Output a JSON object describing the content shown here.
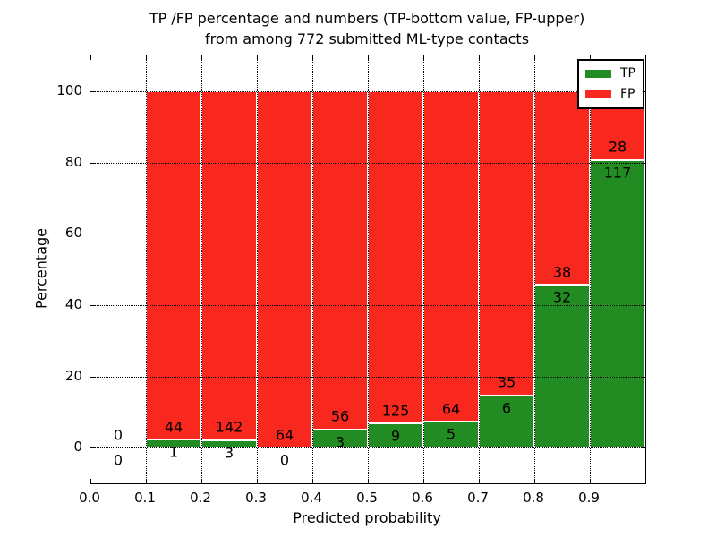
{
  "figure": {
    "title_line1": "TP /FP percentage and numbers (TP-bottom value, FP-upper)",
    "title_line2": "from among 772 submitted ML-type contacts"
  },
  "axes": {
    "xlabel": "Predicted probability",
    "ylabel": "Percentage"
  },
  "legend": {
    "items": [
      {
        "label": "TP",
        "color": "#228b22"
      },
      {
        "label": "FP",
        "color": "#f8281e"
      }
    ],
    "position": "upper right"
  },
  "chart_data": {
    "type": "bar",
    "stacked": true,
    "title": "TP /FP percentage and numbers (TP-bottom value, FP-upper) from among 772 submitted ML-type contacts",
    "xlabel": "Predicted probability",
    "ylabel": "Percentage",
    "xlim": [
      0.0,
      1.0
    ],
    "ylim": [
      -10,
      110
    ],
    "grid": "dotted both axes, drawn above bars",
    "bin_width": 0.1,
    "x_tick_values": [
      0.0,
      0.1,
      0.2,
      0.3,
      0.4,
      0.5,
      0.6,
      0.7,
      0.8,
      0.9
    ],
    "x_tick_labels": [
      "0.0",
      "0.1",
      "0.2",
      "0.3",
      "0.4",
      "0.5",
      "0.6",
      "0.7",
      "0.8",
      "0.9"
    ],
    "y_tick_values": [
      0,
      20,
      40,
      60,
      80,
      100
    ],
    "y_tick_labels": [
      "0",
      "20",
      "40",
      "60",
      "80",
      "100"
    ],
    "series": [
      {
        "name": "TP",
        "color": "#228b22",
        "counts": [
          0,
          1,
          3,
          0,
          3,
          9,
          5,
          6,
          32,
          117
        ]
      },
      {
        "name": "FP",
        "color": "#f8281e",
        "counts": [
          0,
          44,
          142,
          64,
          56,
          125,
          64,
          35,
          38,
          28
        ]
      }
    ],
    "bins": [
      {
        "range": "0.0-0.1",
        "tp_count": 0,
        "fp_count": 0,
        "tp_pct": null,
        "fp_pct": null,
        "has_bar": false
      },
      {
        "range": "0.1-0.2",
        "tp_count": 1,
        "fp_count": 44,
        "tp_pct": 2.22,
        "fp_pct": 97.78,
        "has_bar": true
      },
      {
        "range": "0.2-0.3",
        "tp_count": 3,
        "fp_count": 142,
        "tp_pct": 2.07,
        "fp_pct": 97.93,
        "has_bar": true
      },
      {
        "range": "0.3-0.4",
        "tp_count": 0,
        "fp_count": 64,
        "tp_pct": 0,
        "fp_pct": 100,
        "has_bar": true
      },
      {
        "range": "0.4-0.5",
        "tp_count": 3,
        "fp_count": 56,
        "tp_pct": 5.08,
        "fp_pct": 94.92,
        "has_bar": true
      },
      {
        "range": "0.5-0.6",
        "tp_count": 9,
        "fp_count": 125,
        "tp_pct": 6.72,
        "fp_pct": 93.28,
        "has_bar": true
      },
      {
        "range": "0.6-0.7",
        "tp_count": 5,
        "fp_count": 64,
        "tp_pct": 7.25,
        "fp_pct": 92.75,
        "has_bar": true
      },
      {
        "range": "0.7-0.8",
        "tp_count": 6,
        "fp_count": 35,
        "tp_pct": 14.63,
        "fp_pct": 85.37,
        "has_bar": true
      },
      {
        "range": "0.8-0.9",
        "tp_count": 32,
        "fp_count": 38,
        "tp_pct": 45.71,
        "fp_pct": 54.29,
        "has_bar": true
      },
      {
        "range": "0.9-1.0",
        "tp_count": 117,
        "fp_count": 28,
        "tp_pct": 80.69,
        "fp_pct": 19.31,
        "has_bar": true
      }
    ]
  }
}
